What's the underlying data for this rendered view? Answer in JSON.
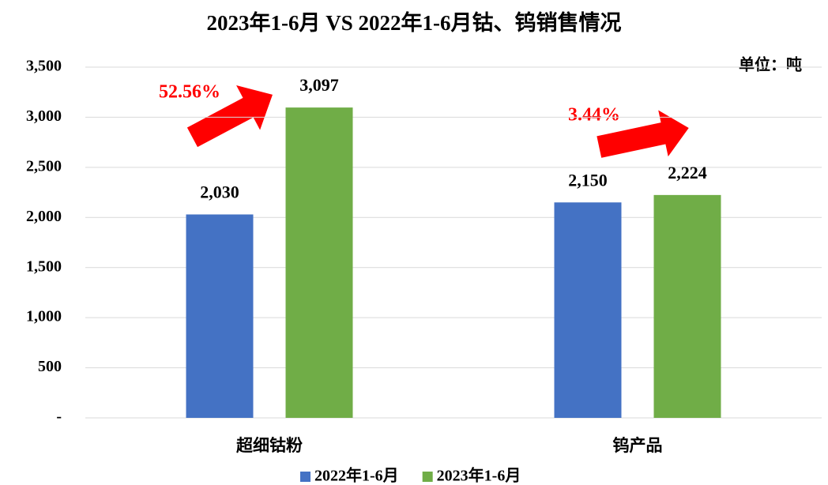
{
  "chart_data": {
    "type": "bar",
    "title": "2023年1-6月 VS 2022年1-6月钴、钨销售情况",
    "unit_label": "单位：吨",
    "annotations": [
      "52.56%",
      "3.44%"
    ],
    "categories": [
      "超细钴粉",
      "钨产品"
    ],
    "series": [
      {
        "name": "2022年1-6月",
        "color": "#4472c4",
        "values": [
          2030,
          2150
        ],
        "value_labels": [
          "2,030",
          "2,150"
        ]
      },
      {
        "name": "2023年1-6月",
        "color": "#70ad47",
        "values": [
          3097,
          2224
        ],
        "value_labels": [
          "3,097",
          "2,224"
        ]
      }
    ],
    "ylim": [
      0,
      3500
    ],
    "yticks": [
      {
        "value": 0,
        "label": "-"
      },
      500,
      {
        "value": 1000,
        "label": "1,000"
      },
      {
        "value": 1500,
        "label": "1,500"
      },
      {
        "value": 2000,
        "label": "2,000"
      },
      {
        "value": 2500,
        "label": "2,500"
      },
      {
        "value": 3000,
        "label": "3,000"
      },
      {
        "value": 3500,
        "label": "3,500"
      }
    ],
    "grid": true,
    "legend": "bottom"
  }
}
